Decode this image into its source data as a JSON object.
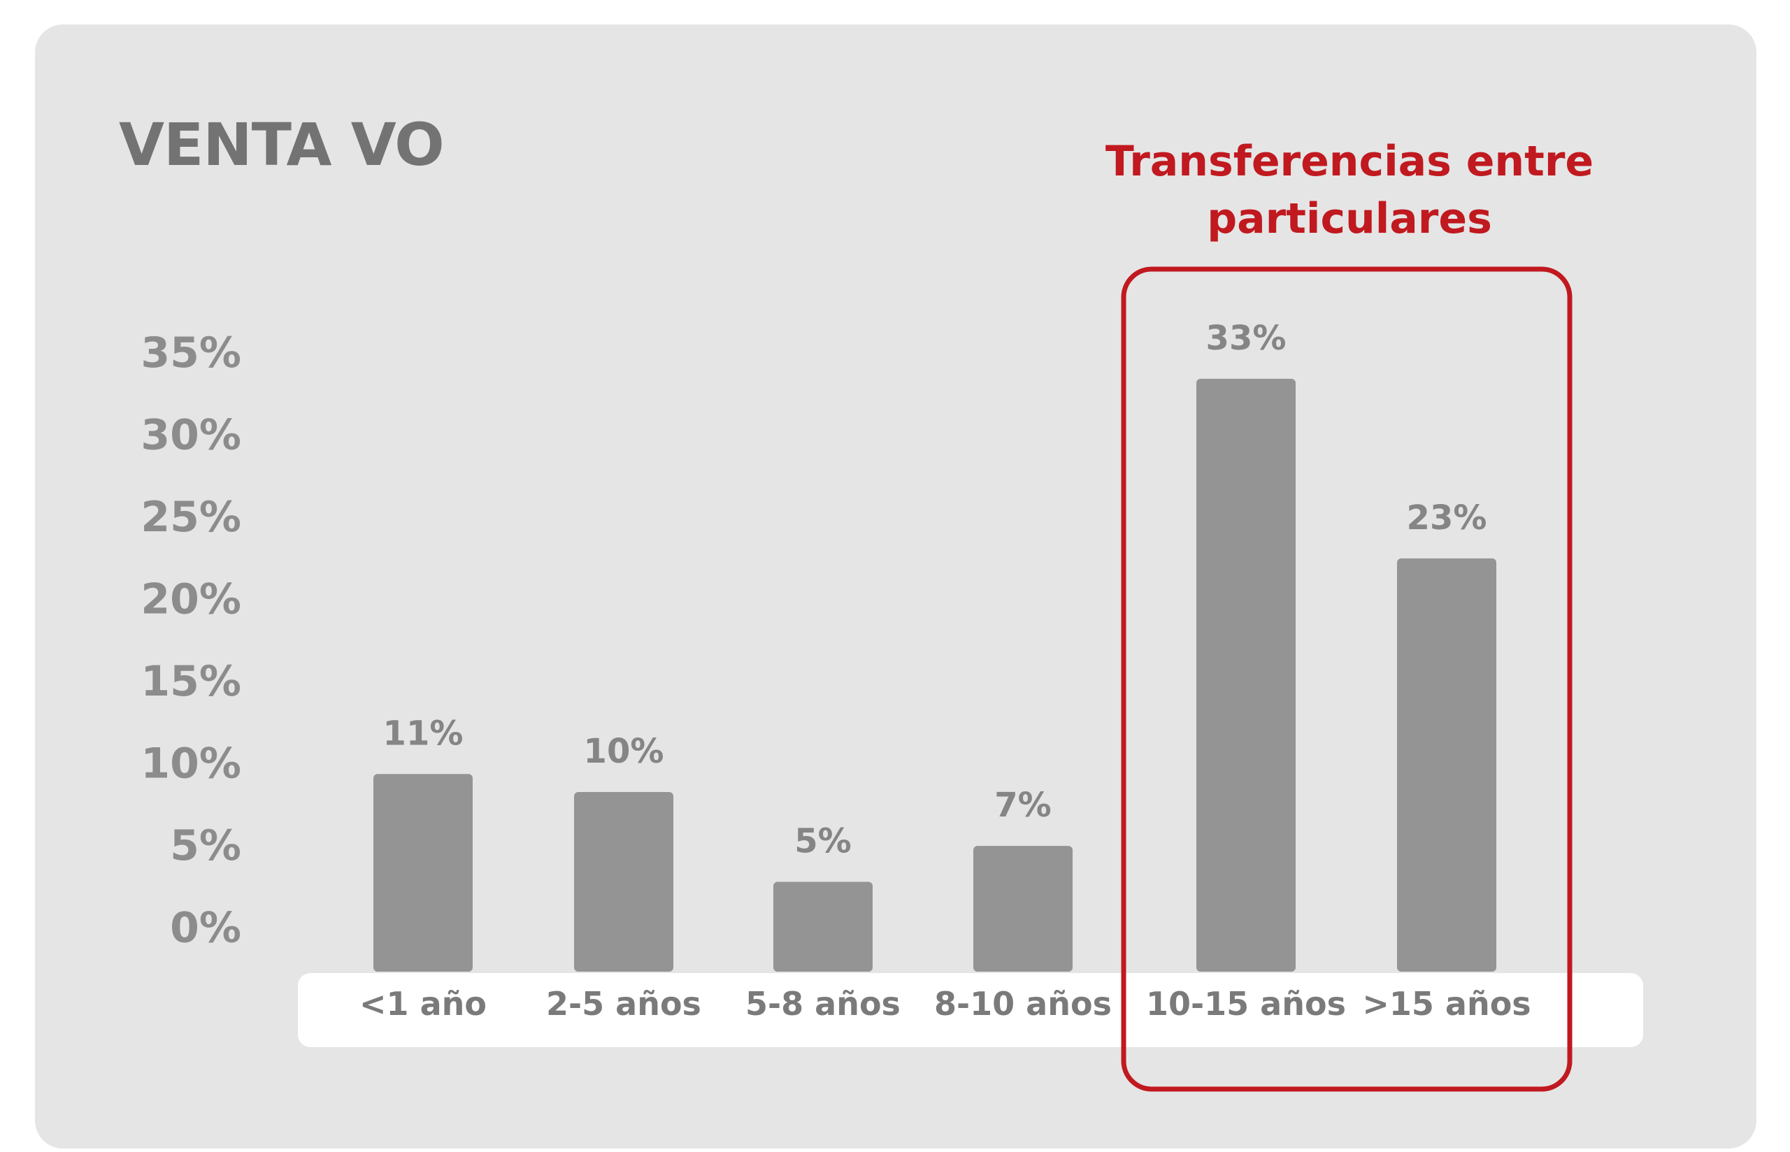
{
  "title": "VENTA VO",
  "callout": "Transferencias entre particulares",
  "colors": {
    "card_background": "#e5e5e5",
    "bar": "#949494",
    "highlight": "#c0191f",
    "axis_text": "#8c8c8c"
  },
  "chart_data": {
    "type": "bar",
    "title": "VENTA VO",
    "xlabel": "",
    "ylabel": "",
    "categories": [
      "<1 año",
      "2-5 años",
      "5-8 años",
      "8-10 años",
      "10-15 años",
      ">15 años"
    ],
    "values": [
      11,
      10,
      5,
      7,
      33,
      23
    ],
    "value_labels": [
      "11%",
      "10%",
      "5%",
      "7%",
      "33%",
      "23%"
    ],
    "yticks": [
      "35%",
      "30%",
      "25%",
      "20%",
      "15%",
      "10%",
      "5%",
      "0%"
    ],
    "ylim": [
      0,
      35
    ],
    "grid": false,
    "legend": "none",
    "highlight": {
      "label": "Transferencias entre particulares",
      "categories": [
        "10-15 años",
        ">15 años"
      ]
    }
  }
}
